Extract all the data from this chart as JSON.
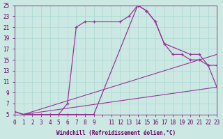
{
  "bg_color": "#cce8e3",
  "grid_color": "#aad8d3",
  "line_color": "#993399",
  "tick_color": "#660066",
  "xlabel": "Windchill (Refroidissement éolien,°C)",
  "xlim": [
    0,
    23
  ],
  "ylim": [
    5,
    25
  ],
  "yticks": [
    5,
    7,
    9,
    11,
    13,
    15,
    17,
    19,
    21,
    23,
    25
  ],
  "xtick_labels": [
    "0",
    "1",
    "2",
    "3",
    "4",
    "5",
    "6",
    "7",
    "8",
    "9",
    "",
    "11",
    "12",
    "13",
    "14",
    "15",
    "16",
    "17",
    "18",
    "19",
    "20",
    "21",
    "22",
    "23"
  ],
  "curve_a_x": [
    0,
    1,
    2,
    3,
    4,
    5,
    6,
    7,
    8,
    9,
    12,
    13,
    14,
    15,
    16,
    17,
    20,
    21,
    22,
    23
  ],
  "curve_a_y": [
    5.5,
    5,
    5,
    5,
    5,
    5,
    7,
    21,
    22,
    22,
    22,
    23,
    25,
    24,
    22,
    18,
    16,
    16,
    14,
    14
  ],
  "curve_b_x": [
    0,
    1,
    2,
    3,
    4,
    5,
    6,
    7,
    8,
    9,
    14,
    15,
    16,
    17,
    18,
    19,
    20,
    21,
    22,
    23
  ],
  "curve_b_y": [
    5.5,
    5,
    5,
    5,
    5,
    5,
    5,
    5,
    5,
    5,
    25,
    24,
    22,
    18,
    16,
    16,
    15,
    15,
    14,
    10
  ],
  "line1_x": [
    1,
    23
  ],
  "line1_y": [
    5,
    16
  ],
  "line2_x": [
    1,
    23
  ],
  "line2_y": [
    5,
    10
  ]
}
